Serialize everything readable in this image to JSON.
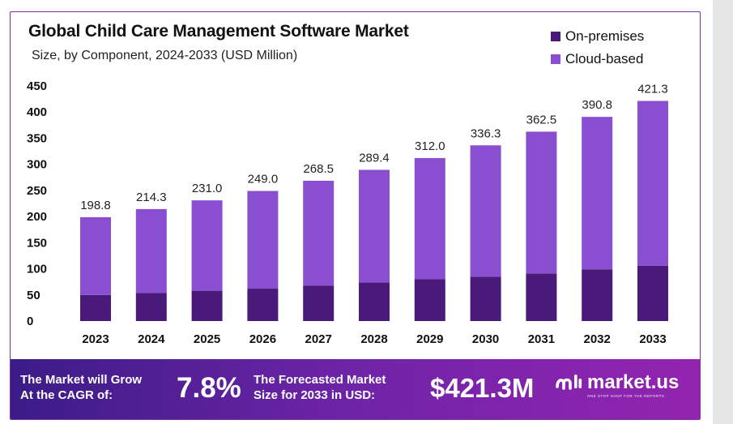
{
  "chart_data": {
    "type": "bar",
    "stacked": true,
    "title": "Global Child Care Management Software Market",
    "subtitle": "Size, by Component, 2024-2033 (USD Million)",
    "categories": [
      "2023",
      "2024",
      "2025",
      "2026",
      "2027",
      "2028",
      "2029",
      "2030",
      "2031",
      "2032",
      "2033"
    ],
    "series": [
      {
        "name": "On-premises",
        "color": "#4a1a7a",
        "values": [
          50,
          54,
          58,
          62,
          68,
          74,
          80,
          85,
          91,
          99,
          106
        ]
      },
      {
        "name": "Cloud-based",
        "color": "#8a4fd1",
        "values": [
          148.8,
          160.3,
          173.0,
          187.0,
          200.5,
          215.4,
          232.0,
          251.3,
          271.5,
          291.8,
          315.3
        ]
      }
    ],
    "totals": [
      198.8,
      214.3,
      231.0,
      249.0,
      268.5,
      289.4,
      312.0,
      336.3,
      362.5,
      390.8,
      421.3
    ],
    "total_labels": [
      "198.8",
      "214.3",
      "231.0",
      "249.0",
      "268.5",
      "289.4",
      "312.0",
      "336.3",
      "362.5",
      "390.8",
      "421.3"
    ],
    "y_ticks": [
      "0",
      "50",
      "100",
      "150",
      "200",
      "250",
      "300",
      "350",
      "400",
      "450"
    ],
    "ylim": [
      0,
      450
    ],
    "legend_position": "top-right"
  },
  "banner": {
    "cagr_text_line1": "The Market will Grow",
    "cagr_text_line2": "At the CAGR of:",
    "cagr_value": "7.8%",
    "forecast_text_line1": "The Forecasted Market",
    "forecast_text_line2": "Size for 2033 in USD:",
    "forecast_value": "$421.3M",
    "brand_name": "market.us",
    "brand_tagline": "ONE STOP SHOP FOR THE REPORTS"
  }
}
